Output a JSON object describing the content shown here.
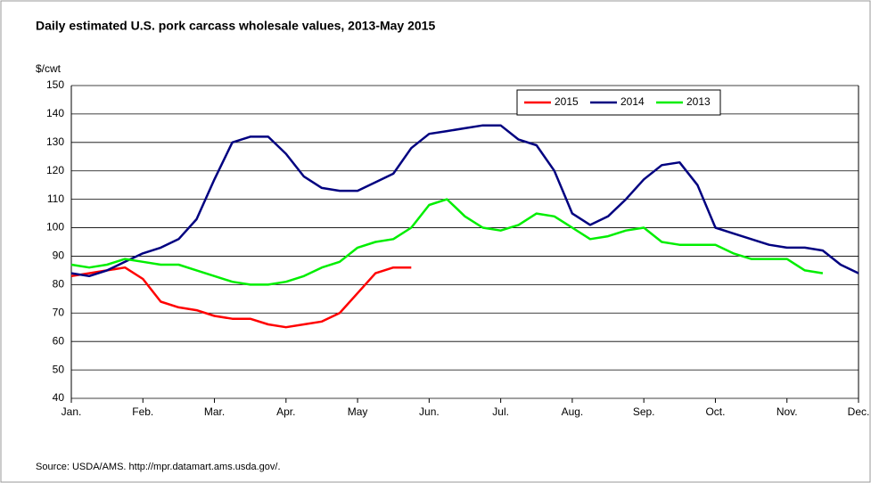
{
  "chart_data": {
    "type": "line",
    "title": "Daily estimated U.S. pork carcass wholesale values, 2013-May 2015",
    "y_label": "$/cwt",
    "source": "Source:  USDA/AMS.  http://mpr.datamart.ams.usda.gov/.",
    "categories": [
      "Jan.",
      null,
      null,
      null,
      "Feb.",
      null,
      null,
      null,
      "Mar.",
      null,
      null,
      null,
      "Apr.",
      null,
      null,
      null,
      "May",
      null,
      null,
      null,
      "Jun.",
      null,
      null,
      null,
      "Jul.",
      null,
      null,
      null,
      "Aug.",
      null,
      null,
      null,
      "Sep.",
      null,
      null,
      null,
      "Oct.",
      null,
      null,
      null,
      "Nov.",
      null,
      null,
      null,
      "Dec."
    ],
    "series": [
      {
        "name": "2015",
        "color": "#ff0000",
        "values": [
          83,
          84,
          85,
          86,
          82,
          74,
          72,
          71,
          69,
          68,
          68,
          66,
          65,
          66,
          67,
          70,
          77,
          84,
          86,
          86,
          null,
          null,
          null,
          null,
          null,
          null,
          null,
          null,
          null,
          null,
          null,
          null,
          null,
          null,
          null,
          null,
          null,
          null,
          null,
          null,
          null,
          null,
          null,
          null,
          null
        ]
      },
      {
        "name": "2014",
        "color": "#000080",
        "values": [
          84,
          83,
          85,
          88,
          91,
          93,
          96,
          103,
          117,
          130,
          132,
          132,
          126,
          118,
          114,
          113,
          113,
          116,
          119,
          128,
          133,
          134,
          135,
          136,
          136,
          131,
          129,
          120,
          105,
          101,
          104,
          110,
          117,
          122,
          123,
          115,
          100,
          98,
          96,
          94,
          93,
          93,
          92,
          87,
          84
        ]
      },
      {
        "name": "2013",
        "color": "#00ee00",
        "values": [
          87,
          86,
          87,
          89,
          88,
          87,
          87,
          85,
          83,
          81,
          80,
          80,
          81,
          83,
          86,
          88,
          93,
          95,
          96,
          100,
          108,
          110,
          104,
          100,
          99,
          101,
          105,
          104,
          100,
          96,
          97,
          99,
          100,
          95,
          94,
          94,
          94,
          91,
          89,
          89,
          89,
          85,
          84,
          null,
          null
        ]
      }
    ],
    "ylim": [
      40,
      150
    ],
    "yticks": [
      40,
      50,
      60,
      70,
      80,
      90,
      100,
      110,
      120,
      130,
      140,
      150
    ],
    "grid": true
  }
}
